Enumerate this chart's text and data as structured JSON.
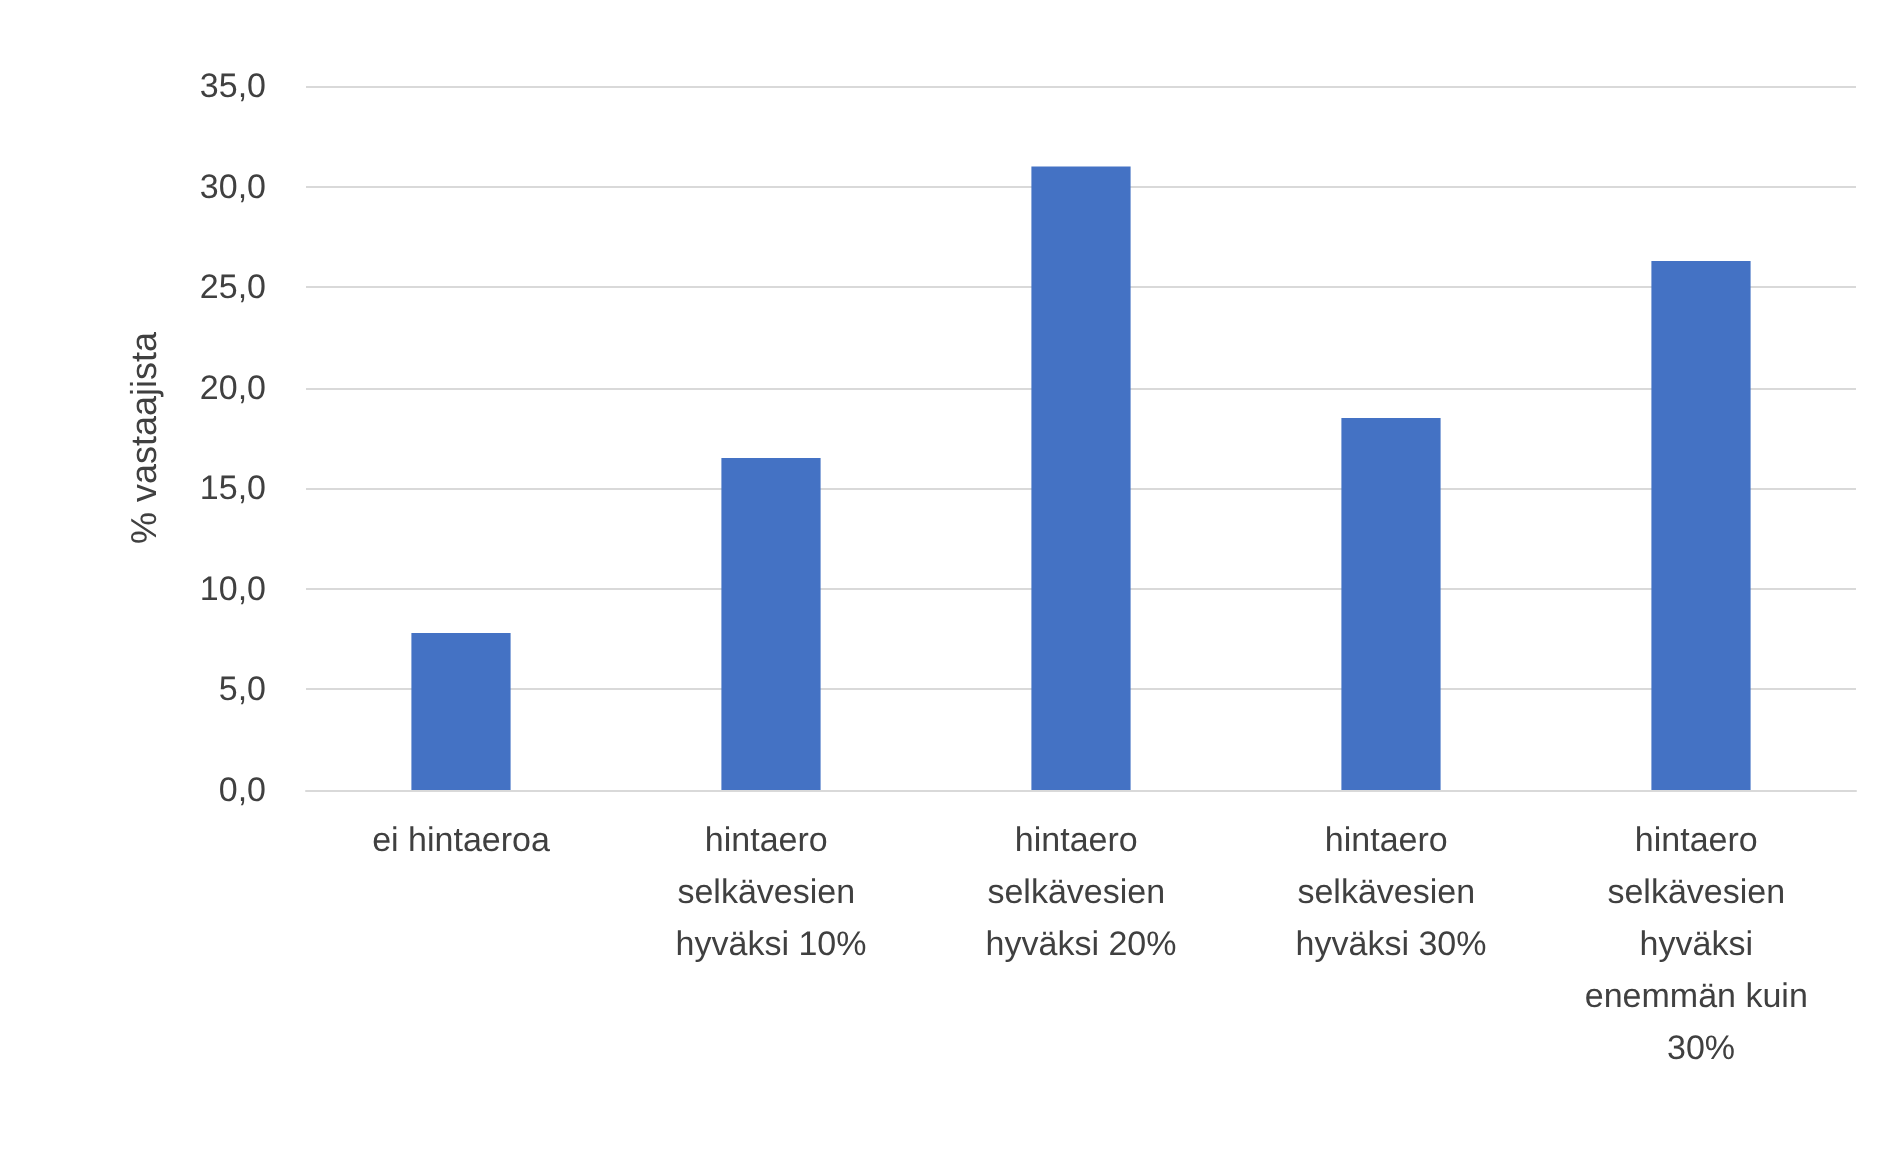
{
  "chart_data": {
    "type": "bar",
    "ylabel": "% vastaajista",
    "categories": [
      "ei hintaeroa",
      "hintaero selkävesien hyväksi 10%",
      "hintaero selkävesien hyväksi 20%",
      "hintaero selkävesien hyväksi 30%",
      "hintaero selkävesien hyväksi enemmän kuin 30%"
    ],
    "values": [
      7.8,
      16.5,
      31.0,
      18.5,
      26.3
    ],
    "color": "#4472c4",
    "ylim": [
      0,
      35
    ],
    "yticks": [
      {
        "value": 0,
        "label": "0,0"
      },
      {
        "value": 5,
        "label": "5,0"
      },
      {
        "value": 10,
        "label": "10,0"
      },
      {
        "value": 15,
        "label": "15,0"
      },
      {
        "value": 20,
        "label": "20,0"
      },
      {
        "value": 25,
        "label": "25,0"
      },
      {
        "value": 30,
        "label": "30,0"
      },
      {
        "value": 35,
        "label": "35,0"
      }
    ],
    "grid": "y"
  }
}
